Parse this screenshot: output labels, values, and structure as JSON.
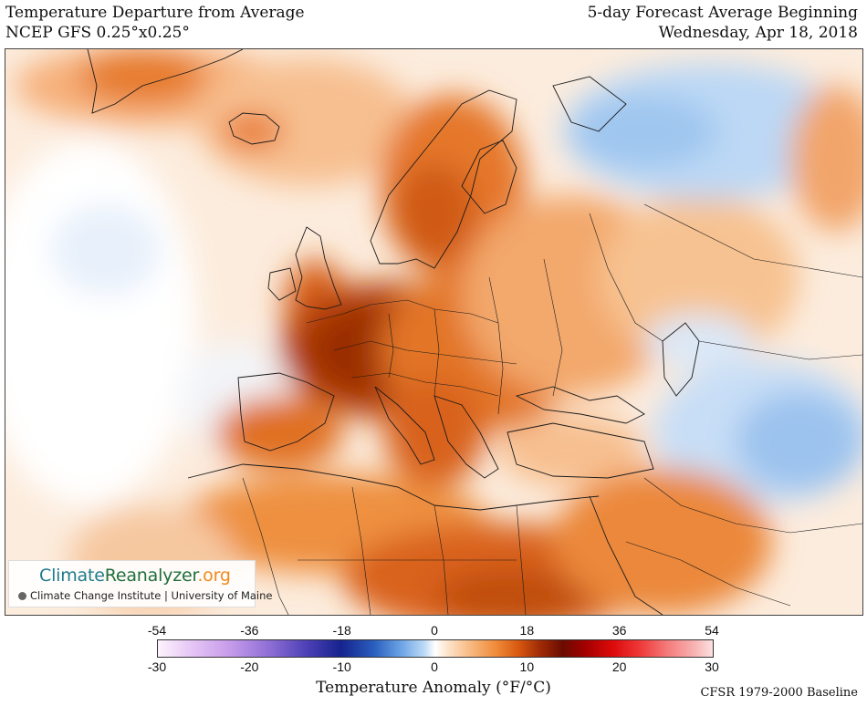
{
  "header": {
    "title": "Temperature Departure from Average",
    "model": "NCEP GFS 0.25°x0.25°",
    "forecast_label": "5-day Forecast Average Beginning",
    "forecast_date": "Wednesday, Apr 18, 2018"
  },
  "logo": {
    "part_a": "Climate",
    "part_b": "Reanalyzer",
    "part_c": ".org",
    "subtitle": "Climate Change Institute | University of Maine"
  },
  "colorbar": {
    "fahrenheit_ticks": [
      "-54",
      "-36",
      "-18",
      "0",
      "18",
      "36",
      "54"
    ],
    "celsius_ticks": [
      "-30",
      "-20",
      "-10",
      "0",
      "10",
      "20",
      "30"
    ],
    "range_celsius": [
      -30,
      30
    ],
    "title": "Temperature Anomaly (°F/°C)"
  },
  "footer": {
    "baseline": "CFSR 1979-2000 Baseline"
  },
  "colors": {
    "strong_warm": "#a53a05",
    "warm": "#e87a2c",
    "mild_warm": "#f6b580",
    "slight_warm": "#fbe0c6",
    "cool": "#a9cdf2",
    "border_line": "#1a1a1a"
  }
}
